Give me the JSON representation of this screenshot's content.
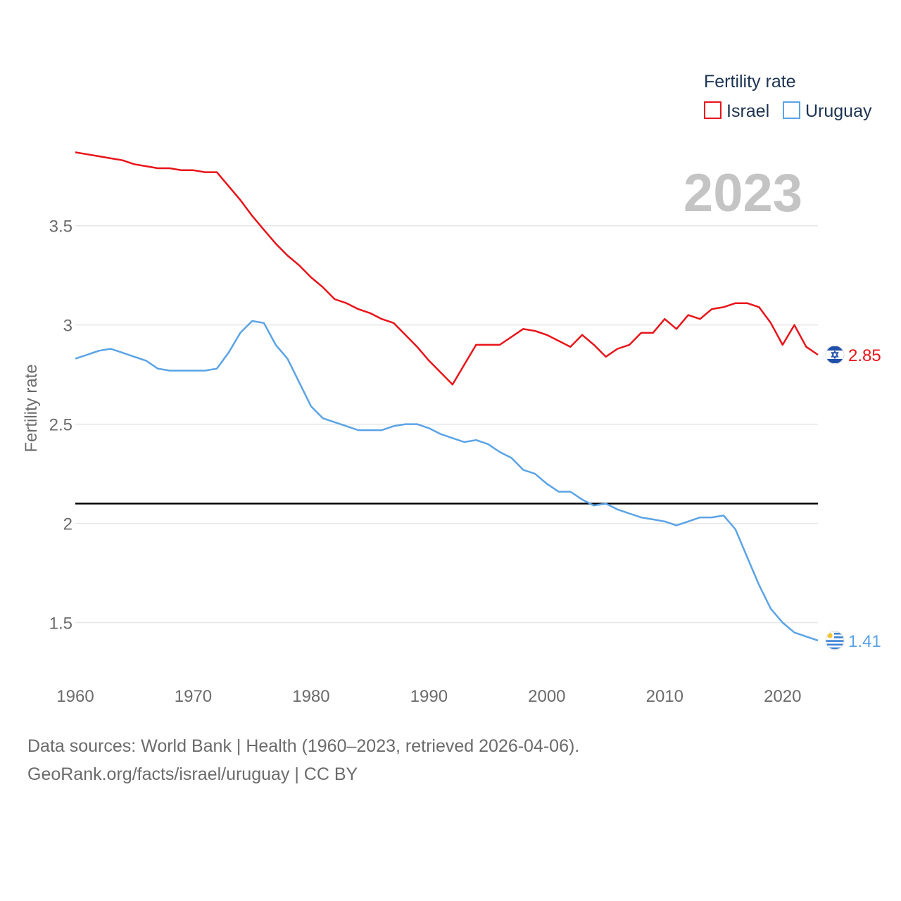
{
  "chart_data": {
    "type": "line",
    "title": "",
    "year_label": "2023",
    "ylabel": "Fertility rate",
    "xlabel": "",
    "legend_title": "Fertility rate",
    "legend_position": "top-right",
    "xlim": [
      1960,
      2023
    ],
    "ylim": [
      1.25,
      3.875
    ],
    "y_ticks": [
      1.5,
      2,
      2.5,
      3,
      3.5
    ],
    "y_tick_labels": [
      "1.5",
      "2",
      "2.5",
      "3",
      "3.5"
    ],
    "x_ticks": [
      1960,
      1970,
      1980,
      1990,
      2000,
      2010,
      2020
    ],
    "x_tick_labels": [
      "1960",
      "1970",
      "1980",
      "1990",
      "2000",
      "2010",
      "2020"
    ],
    "reference_line": 2.1,
    "x": [
      1960,
      1961,
      1962,
      1963,
      1964,
      1965,
      1966,
      1967,
      1968,
      1969,
      1970,
      1971,
      1972,
      1973,
      1974,
      1975,
      1976,
      1977,
      1978,
      1979,
      1980,
      1981,
      1982,
      1983,
      1984,
      1985,
      1986,
      1987,
      1988,
      1989,
      1990,
      1991,
      1992,
      1993,
      1994,
      1995,
      1996,
      1997,
      1998,
      1999,
      2000,
      2001,
      2002,
      2003,
      2004,
      2005,
      2006,
      2007,
      2008,
      2009,
      2010,
      2011,
      2012,
      2013,
      2014,
      2015,
      2016,
      2017,
      2018,
      2019,
      2020,
      2021,
      2022,
      2023
    ],
    "series": [
      {
        "name": "Israel",
        "color": "#e8141a",
        "end_label": "2.85",
        "flag": "israel-flag",
        "values": [
          3.87,
          3.86,
          3.85,
          3.84,
          3.83,
          3.81,
          3.8,
          3.79,
          3.79,
          3.78,
          3.78,
          3.77,
          3.77,
          3.7,
          3.63,
          3.55,
          3.48,
          3.41,
          3.35,
          3.3,
          3.24,
          3.19,
          3.13,
          3.11,
          3.08,
          3.06,
          3.03,
          3.01,
          2.95,
          2.89,
          2.82,
          2.76,
          2.7,
          2.8,
          2.9,
          2.9,
          2.9,
          2.94,
          2.98,
          2.97,
          2.95,
          2.92,
          2.89,
          2.95,
          2.9,
          2.84,
          2.88,
          2.9,
          2.96,
          2.96,
          3.03,
          2.98,
          3.05,
          3.03,
          3.08,
          3.09,
          3.11,
          3.11,
          3.09,
          3.01,
          2.9,
          3.0,
          2.89,
          2.85
        ]
      },
      {
        "name": "Uruguay",
        "color": "#5ba3e6",
        "end_label": "1.41",
        "flag": "uruguay-flag",
        "values": [
          2.83,
          2.85,
          2.87,
          2.88,
          2.86,
          2.84,
          2.82,
          2.78,
          2.77,
          2.77,
          2.77,
          2.77,
          2.78,
          2.86,
          2.96,
          3.02,
          3.01,
          2.9,
          2.83,
          2.71,
          2.59,
          2.53,
          2.51,
          2.49,
          2.47,
          2.47,
          2.47,
          2.49,
          2.5,
          2.5,
          2.48,
          2.45,
          2.43,
          2.41,
          2.42,
          2.4,
          2.36,
          2.33,
          2.27,
          2.25,
          2.2,
          2.16,
          2.16,
          2.12,
          2.09,
          2.1,
          2.07,
          2.05,
          2.03,
          2.02,
          2.01,
          1.99,
          2.01,
          2.03,
          2.03,
          2.04,
          1.97,
          1.83,
          1.69,
          1.57,
          1.5,
          1.45,
          1.43,
          1.41
        ]
      }
    ],
    "source_line_1": "Data sources: World Bank | Health (1960–2023, retrieved 2026-04-06).",
    "source_line_2": "GeoRank.org/facts/israel/uruguay | CC BY",
    "colors": {
      "grid": "#e6e6e6",
      "axis_text": "#6b6b6b",
      "legend_text": "#1c3352",
      "year_text": "#c4c4c4",
      "reference": "#000000"
    }
  }
}
